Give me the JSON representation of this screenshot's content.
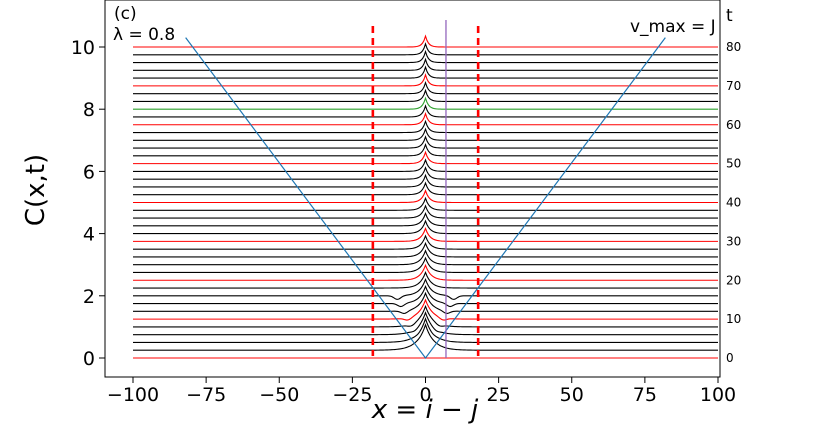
{
  "chart_data": {
    "type": "line",
    "panel_label": "(c)",
    "annotation_lambda": "λ = 0.8",
    "annotation_vmax": "v_max = J",
    "xlabel": "x = i − j",
    "ylabel": "C(x,t)",
    "xlim": [
      -100,
      100
    ],
    "ylim": [
      -0.3,
      11
    ],
    "x_ticks": [
      -100,
      -75,
      -50,
      -25,
      0,
      25,
      50,
      75,
      100
    ],
    "y_ticks": [
      0,
      2,
      4,
      6,
      8,
      10
    ],
    "right_axis": {
      "label": "t",
      "ticks": [
        0,
        10,
        20,
        30,
        40,
        50,
        60,
        70,
        80
      ],
      "tick_positions_y": [
        0,
        1.25,
        2.5,
        3.75,
        5.0,
        6.25,
        7.5,
        8.75,
        10.0
      ]
    },
    "series_count": 41,
    "time_step": 2,
    "offset_per_series": 0.25,
    "colors": {
      "default": "#000000",
      "every_tenth_t": "#ff0000",
      "t_64": "#2ca02c",
      "light_cone": "#1f77b4",
      "dashed_markers": "#ff0000",
      "marker_line": "#9467bd"
    },
    "light_cone": {
      "apex": [
        0,
        0
      ],
      "left_end": [
        -82,
        10.3
      ],
      "right_end": [
        82,
        10.3
      ]
    },
    "dashed_vertical_lines_x": [
      -18,
      18
    ],
    "solid_vertical_line_x": 7,
    "grid": false,
    "legend": "none"
  }
}
